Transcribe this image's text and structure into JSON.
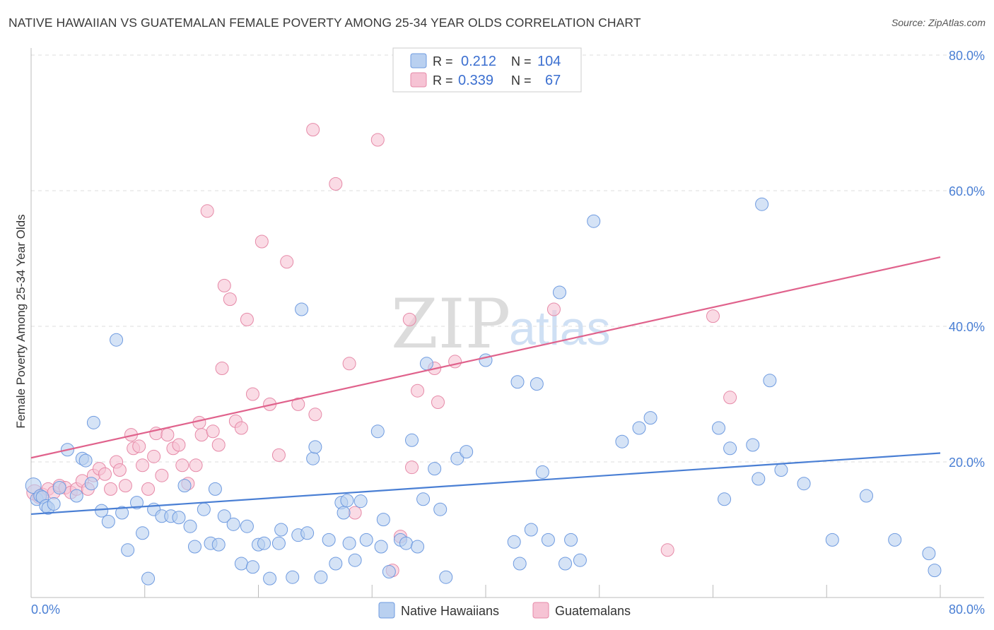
{
  "title": "NATIVE HAWAIIAN VS GUATEMALAN FEMALE POVERTY AMONG 25-34 YEAR OLDS CORRELATION CHART",
  "source": "Source: ZipAtlas.com",
  "watermark": {
    "zip": "ZIP",
    "atlas": "atlas"
  },
  "colors": {
    "blue": "#4a7fd4",
    "blue_fill": "#b9d0f0",
    "pink": "#e0628c",
    "pink_fill": "#f6c3d4",
    "grid": "#dddddd"
  },
  "legend": {
    "rows": [
      {
        "r_label": "R =",
        "r_value": "0.212",
        "n_label": "N =",
        "n_value": "104",
        "color": "blue"
      },
      {
        "r_label": "R =",
        "r_value": "0.339",
        "n_label": "N =",
        "n_value": "67",
        "color": "pink"
      }
    ]
  },
  "bottom_legend": [
    "Native Hawaiians",
    "Guatemalans"
  ],
  "chart_data": {
    "type": "scatter",
    "title": "NATIVE HAWAIIAN VS GUATEMALAN FEMALE POVERTY AMONG 25-34 YEAR OLDS CORRELATION CHART",
    "xlabel": "",
    "ylabel": "Female Poverty Among 25-34 Year Olds",
    "x_tick_labels": [
      "0.0%",
      "80.0%"
    ],
    "y_tick_labels": [
      "80.0%",
      "60.0%",
      "40.0%",
      "20.0%"
    ],
    "xlim": [
      0,
      80
    ],
    "ylim": [
      0,
      80
    ],
    "series": [
      {
        "name": "Native Hawaiians",
        "color": "blue",
        "R": 0.212,
        "N": 104,
        "trend": {
          "x0": 0,
          "y0": 12.3,
          "x1": 80,
          "y1": 21.3
        },
        "points": [
          [
            0.2,
            16.5
          ],
          [
            0.5,
            14.5
          ],
          [
            0.8,
            15.0
          ],
          [
            1.0,
            14.8
          ],
          [
            1.3,
            13.5
          ],
          [
            1.5,
            13.2
          ],
          [
            2.0,
            13.8
          ],
          [
            2.5,
            16.2
          ],
          [
            3.2,
            21.8
          ],
          [
            4.0,
            15.0
          ],
          [
            4.5,
            20.5
          ],
          [
            4.8,
            20.2
          ],
          [
            5.3,
            16.8
          ],
          [
            5.5,
            25.8
          ],
          [
            6.2,
            12.8
          ],
          [
            6.8,
            11.2
          ],
          [
            7.5,
            38.0
          ],
          [
            8.0,
            12.5
          ],
          [
            8.5,
            7.0
          ],
          [
            9.3,
            14.0
          ],
          [
            9.8,
            9.5
          ],
          [
            10.3,
            2.8
          ],
          [
            10.8,
            13.0
          ],
          [
            11.5,
            12.0
          ],
          [
            12.3,
            12.0
          ],
          [
            13.0,
            11.8
          ],
          [
            13.5,
            16.5
          ],
          [
            14.0,
            10.5
          ],
          [
            14.4,
            7.5
          ],
          [
            15.2,
            13.0
          ],
          [
            15.8,
            8.0
          ],
          [
            16.2,
            16.0
          ],
          [
            16.5,
            7.8
          ],
          [
            17.0,
            12.0
          ],
          [
            17.8,
            10.8
          ],
          [
            18.5,
            5.0
          ],
          [
            19.0,
            10.5
          ],
          [
            19.5,
            4.5
          ],
          [
            20.0,
            7.8
          ],
          [
            20.5,
            8.0
          ],
          [
            21.0,
            2.8
          ],
          [
            21.8,
            8.0
          ],
          [
            22.0,
            10.0
          ],
          [
            23.0,
            3.0
          ],
          [
            23.5,
            9.2
          ],
          [
            23.8,
            42.5
          ],
          [
            24.3,
            9.5
          ],
          [
            24.8,
            20.5
          ],
          [
            25.0,
            22.2
          ],
          [
            25.5,
            3.0
          ],
          [
            26.2,
            8.5
          ],
          [
            26.8,
            5.0
          ],
          [
            27.3,
            14.0
          ],
          [
            27.5,
            12.5
          ],
          [
            27.8,
            14.3
          ],
          [
            28.0,
            8.0
          ],
          [
            28.5,
            5.5
          ],
          [
            29.0,
            14.2
          ],
          [
            29.5,
            8.5
          ],
          [
            30.5,
            24.5
          ],
          [
            30.8,
            7.5
          ],
          [
            31.0,
            11.5
          ],
          [
            31.5,
            3.8
          ],
          [
            32.5,
            8.5
          ],
          [
            33.0,
            8.0
          ],
          [
            33.5,
            23.2
          ],
          [
            34.0,
            7.5
          ],
          [
            34.5,
            14.5
          ],
          [
            34.8,
            34.5
          ],
          [
            35.5,
            19.0
          ],
          [
            36.0,
            13.0
          ],
          [
            36.5,
            3.0
          ],
          [
            37.5,
            20.5
          ],
          [
            38.3,
            21.5
          ],
          [
            40.0,
            35.0
          ],
          [
            42.5,
            8.2
          ],
          [
            42.8,
            31.8
          ],
          [
            43.0,
            5.0
          ],
          [
            44.0,
            10.0
          ],
          [
            44.5,
            31.5
          ],
          [
            45.0,
            18.5
          ],
          [
            45.5,
            8.5
          ],
          [
            46.5,
            45.0
          ],
          [
            47.0,
            5.0
          ],
          [
            47.5,
            8.5
          ],
          [
            48.3,
            5.5
          ],
          [
            49.5,
            55.5
          ],
          [
            52.0,
            23.0
          ],
          [
            53.5,
            25.0
          ],
          [
            54.5,
            26.5
          ],
          [
            60.5,
            25.0
          ],
          [
            61.0,
            14.5
          ],
          [
            61.5,
            22.0
          ],
          [
            63.5,
            22.5
          ],
          [
            64.0,
            17.5
          ],
          [
            64.3,
            58.0
          ],
          [
            65.0,
            32.0
          ],
          [
            66.0,
            18.8
          ],
          [
            68.0,
            16.8
          ],
          [
            70.5,
            8.5
          ],
          [
            73.5,
            15.0
          ],
          [
            76.0,
            8.5
          ],
          [
            79.0,
            6.5
          ],
          [
            79.5,
            4.0
          ]
        ]
      },
      {
        "name": "Guatemalans",
        "color": "pink",
        "R": 0.339,
        "N": 67,
        "trend": {
          "x0": 0,
          "y0": 20.6,
          "x1": 80,
          "y1": 50.2
        },
        "points": [
          [
            0.3,
            15.5
          ],
          [
            0.7,
            14.8
          ],
          [
            1.0,
            15.2
          ],
          [
            1.5,
            16.0
          ],
          [
            2.0,
            15.5
          ],
          [
            2.5,
            16.5
          ],
          [
            3.0,
            16.2
          ],
          [
            3.5,
            15.5
          ],
          [
            4.0,
            16.0
          ],
          [
            4.5,
            17.2
          ],
          [
            5.0,
            16.0
          ],
          [
            5.5,
            18.0
          ],
          [
            6.0,
            19.0
          ],
          [
            6.5,
            18.2
          ],
          [
            7.0,
            16.0
          ],
          [
            7.5,
            20.0
          ],
          [
            7.8,
            18.8
          ],
          [
            8.3,
            16.5
          ],
          [
            8.8,
            24.0
          ],
          [
            9.0,
            22.0
          ],
          [
            9.5,
            22.3
          ],
          [
            9.8,
            19.5
          ],
          [
            10.3,
            16.0
          ],
          [
            10.8,
            20.8
          ],
          [
            11.0,
            24.2
          ],
          [
            11.5,
            18.0
          ],
          [
            12.0,
            24.0
          ],
          [
            12.5,
            22.0
          ],
          [
            13.0,
            22.5
          ],
          [
            13.3,
            19.5
          ],
          [
            13.8,
            16.8
          ],
          [
            14.5,
            19.5
          ],
          [
            14.8,
            25.8
          ],
          [
            15.0,
            24.0
          ],
          [
            15.5,
            57.0
          ],
          [
            16.0,
            24.5
          ],
          [
            16.5,
            22.5
          ],
          [
            16.8,
            33.8
          ],
          [
            17.0,
            46.0
          ],
          [
            17.5,
            44.0
          ],
          [
            18.0,
            26.0
          ],
          [
            18.5,
            25.0
          ],
          [
            19.0,
            41.0
          ],
          [
            19.5,
            30.0
          ],
          [
            20.3,
            52.5
          ],
          [
            21.0,
            28.5
          ],
          [
            21.8,
            21.0
          ],
          [
            22.5,
            49.5
          ],
          [
            23.5,
            28.5
          ],
          [
            24.8,
            69.0
          ],
          [
            25.0,
            27.0
          ],
          [
            26.8,
            61.0
          ],
          [
            28.0,
            34.5
          ],
          [
            28.5,
            12.5
          ],
          [
            30.5,
            67.5
          ],
          [
            31.8,
            4.0
          ],
          [
            32.5,
            9.0
          ],
          [
            33.3,
            41.0
          ],
          [
            33.5,
            19.2
          ],
          [
            34.0,
            30.5
          ],
          [
            35.5,
            33.8
          ],
          [
            35.8,
            28.8
          ],
          [
            37.3,
            34.8
          ],
          [
            46.0,
            42.5
          ],
          [
            56.0,
            7.0
          ],
          [
            60.0,
            41.5
          ],
          [
            61.5,
            29.5
          ]
        ]
      }
    ]
  }
}
